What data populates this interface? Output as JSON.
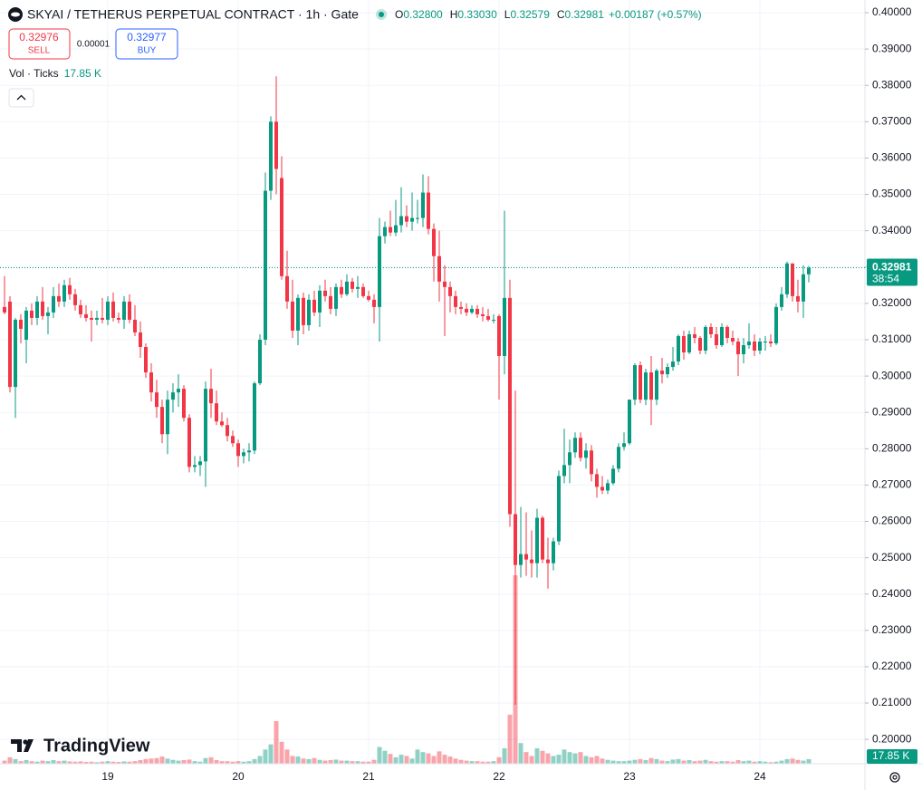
{
  "header": {
    "symbol": "SKYAI / TETHERUS PERPETUAL CONTRACT · 1h · Gate",
    "ohlc": [
      {
        "key": "O",
        "value": "0.32800"
      },
      {
        "key": "H",
        "value": "0.33030"
      },
      {
        "key": "L",
        "value": "0.32579"
      },
      {
        "key": "C",
        "value": "0.32981"
      }
    ],
    "change": "+0.00187 (+0.57%)"
  },
  "trade": {
    "sell_price": "0.32976",
    "sell_label": "SELL",
    "spread": "0.00001",
    "buy_price": "0.32977",
    "buy_label": "BUY"
  },
  "volume_legend": {
    "label": "Vol · Ticks"
  },
  "countdown": "38:54",
  "branding": "TradingView",
  "chart_data": {
    "type": "candlestick",
    "categories": [
      null,
      null,
      null,
      null,
      null,
      null,
      null,
      null,
      null,
      null,
      null,
      null,
      null,
      null,
      null,
      null,
      null,
      null,
      null,
      "19",
      null,
      null,
      null,
      null,
      null,
      null,
      null,
      null,
      null,
      null,
      null,
      null,
      null,
      null,
      null,
      null,
      null,
      null,
      null,
      null,
      null,
      null,
      null,
      "20",
      null,
      null,
      null,
      null,
      null,
      null,
      null,
      null,
      null,
      null,
      null,
      null,
      null,
      null,
      null,
      null,
      null,
      null,
      null,
      null,
      null,
      null,
      null,
      "21",
      null,
      null,
      null,
      null,
      null,
      null,
      null,
      null,
      null,
      null,
      null,
      null,
      null,
      null,
      null,
      null,
      null,
      null,
      null,
      null,
      null,
      null,
      null,
      "22",
      null,
      null,
      null,
      null,
      null,
      null,
      null,
      null,
      null,
      null,
      null,
      null,
      null,
      null,
      null,
      null,
      null,
      null,
      null,
      null,
      null,
      null,
      null,
      "23",
      null,
      null,
      null,
      null,
      null,
      null,
      null,
      null,
      null,
      null,
      null,
      null,
      null,
      null,
      null,
      null,
      null,
      null,
      null,
      null,
      null,
      null,
      null,
      "24",
      null,
      null,
      null,
      null,
      null,
      null,
      null,
      null,
      null
    ],
    "open": [
      0.319,
      0.3205,
      0.297,
      0.3155,
      0.31,
      0.318,
      0.316,
      0.3205,
      0.3165,
      0.3175,
      0.322,
      0.3205,
      0.325,
      0.3225,
      0.3195,
      0.317,
      0.316,
      0.3155,
      0.316,
      0.3155,
      0.3205,
      0.316,
      0.3155,
      0.3205,
      0.3155,
      0.312,
      0.308,
      0.301,
      0.2955,
      0.2915,
      0.284,
      0.2935,
      0.2955,
      0.2965,
      0.2885,
      0.275,
      0.2755,
      0.2765,
      0.2965,
      0.2925,
      0.2875,
      0.2865,
      0.2835,
      0.2815,
      0.278,
      0.279,
      0.2795,
      0.298,
      0.31,
      0.351,
      0.37,
      0.3545,
      0.3275,
      0.3205,
      0.3125,
      0.3215,
      0.314,
      0.321,
      0.3175,
      0.3235,
      0.322,
      0.3185,
      0.3245,
      0.3225,
      0.326,
      0.324,
      0.3245,
      0.322,
      0.321,
      0.319,
      0.3385,
      0.341,
      0.3395,
      0.3415,
      0.344,
      0.3425,
      0.3435,
      0.3435,
      0.3505,
      0.3405,
      0.333,
      0.326,
      0.3245,
      0.322,
      0.319,
      0.3185,
      0.3175,
      0.3185,
      0.317,
      0.3165,
      0.3155,
      0.3165,
      0.3055,
      0.3215,
      0.262,
      0.248,
      0.251,
      0.2495,
      0.2485,
      0.261,
      0.2495,
      0.2485,
      0.2545,
      0.2725,
      0.2755,
      0.279,
      0.283,
      0.2775,
      0.2795,
      0.273,
      0.2695,
      0.2685,
      0.2705,
      0.2745,
      0.2805,
      0.2815,
      0.2935,
      0.303,
      0.2935,
      0.301,
      0.2935,
      0.3015,
      0.3005,
      0.3025,
      0.304,
      0.311,
      0.3065,
      0.3115,
      0.3105,
      0.307,
      0.3135,
      0.3115,
      0.3085,
      0.3135,
      0.3105,
      0.3095,
      0.306,
      0.3085,
      0.3095,
      0.307,
      0.3095,
      0.3095,
      0.309,
      0.319,
      0.3225,
      0.331,
      0.322,
      0.3205,
      0.328
    ],
    "high": [
      0.3275,
      0.322,
      0.316,
      0.317,
      0.319,
      0.32,
      0.322,
      0.3245,
      0.319,
      0.3245,
      0.3255,
      0.3265,
      0.327,
      0.324,
      0.321,
      0.3195,
      0.318,
      0.318,
      0.3215,
      0.322,
      0.323,
      0.3175,
      0.322,
      0.3225,
      0.3195,
      0.315,
      0.309,
      0.3035,
      0.299,
      0.2935,
      0.296,
      0.298,
      0.3005,
      0.2975,
      0.2895,
      0.278,
      0.278,
      0.2985,
      0.302,
      0.296,
      0.29,
      0.2885,
      0.285,
      0.2825,
      0.28,
      0.2815,
      0.2985,
      0.3115,
      0.356,
      0.3715,
      0.3825,
      0.3605,
      0.3345,
      0.3265,
      0.3225,
      0.323,
      0.3225,
      0.3235,
      0.325,
      0.3265,
      0.3245,
      0.3255,
      0.3265,
      0.328,
      0.327,
      0.3275,
      0.3255,
      0.3235,
      0.3225,
      0.3435,
      0.3425,
      0.3455,
      0.3485,
      0.352,
      0.347,
      0.3505,
      0.3485,
      0.3555,
      0.355,
      0.342,
      0.34,
      0.3305,
      0.326,
      0.3235,
      0.3205,
      0.32,
      0.3195,
      0.3195,
      0.319,
      0.3185,
      0.317,
      0.317,
      0.3455,
      0.3265,
      0.296,
      0.264,
      0.2625,
      0.2575,
      0.2635,
      0.2615,
      0.2555,
      0.2555,
      0.274,
      0.2855,
      0.2825,
      0.2845,
      0.2845,
      0.2815,
      0.281,
      0.2745,
      0.2725,
      0.2715,
      0.2755,
      0.2815,
      0.2845,
      0.2935,
      0.3035,
      0.304,
      0.302,
      0.3055,
      0.302,
      0.305,
      0.3035,
      0.308,
      0.3115,
      0.3125,
      0.3125,
      0.3135,
      0.311,
      0.314,
      0.3145,
      0.3135,
      0.3145,
      0.314,
      0.3125,
      0.3105,
      0.3105,
      0.3145,
      0.3115,
      0.3105,
      0.311,
      0.3115,
      0.32,
      0.3245,
      0.3315,
      0.331,
      0.3265,
      0.3305,
      0.3303
    ],
    "low": [
      0.317,
      0.2955,
      0.2885,
      0.309,
      0.3035,
      0.314,
      0.314,
      0.3155,
      0.3115,
      0.316,
      0.319,
      0.319,
      0.321,
      0.318,
      0.316,
      0.315,
      0.3095,
      0.314,
      0.3145,
      0.314,
      0.315,
      0.3145,
      0.313,
      0.3145,
      0.311,
      0.305,
      0.2995,
      0.293,
      0.2885,
      0.2815,
      0.2785,
      0.29,
      0.2915,
      0.2875,
      0.2735,
      0.2735,
      0.2725,
      0.2695,
      0.2885,
      0.2865,
      0.286,
      0.282,
      0.2805,
      0.275,
      0.276,
      0.2765,
      0.2785,
      0.2975,
      0.3085,
      0.3485,
      0.35,
      0.3265,
      0.3185,
      0.3105,
      0.3085,
      0.3115,
      0.3125,
      0.3165,
      0.3135,
      0.3205,
      0.317,
      0.3165,
      0.3215,
      0.322,
      0.323,
      0.3215,
      0.3215,
      0.3205,
      0.3145,
      0.3095,
      0.3365,
      0.3385,
      0.3385,
      0.3395,
      0.341,
      0.34,
      0.342,
      0.341,
      0.339,
      0.326,
      0.3205,
      0.311,
      0.3175,
      0.317,
      0.317,
      0.3165,
      0.317,
      0.316,
      0.315,
      0.315,
      0.3145,
      0.2935,
      0.3005,
      0.2585,
      0.2095,
      0.2445,
      0.245,
      0.2445,
      0.2445,
      0.2485,
      0.2415,
      0.2465,
      0.2535,
      0.2705,
      0.2705,
      0.2775,
      0.2765,
      0.2745,
      0.271,
      0.2665,
      0.2675,
      0.2675,
      0.27,
      0.2735,
      0.2795,
      0.281,
      0.292,
      0.2925,
      0.292,
      0.2865,
      0.292,
      0.298,
      0.2995,
      0.3015,
      0.303,
      0.3045,
      0.306,
      0.309,
      0.306,
      0.306,
      0.3105,
      0.3075,
      0.308,
      0.309,
      0.3085,
      0.3,
      0.3035,
      0.3075,
      0.3055,
      0.306,
      0.307,
      0.308,
      0.3085,
      0.318,
      0.3215,
      0.3205,
      0.3175,
      0.316,
      0.32579
    ],
    "close": [
      0.3175,
      0.297,
      0.3155,
      0.313,
      0.318,
      0.316,
      0.3205,
      0.3165,
      0.3175,
      0.322,
      0.3205,
      0.325,
      0.3225,
      0.3195,
      0.317,
      0.316,
      0.3155,
      0.316,
      0.3155,
      0.3205,
      0.316,
      0.3155,
      0.3205,
      0.3155,
      0.312,
      0.308,
      0.301,
      0.2955,
      0.2915,
      0.284,
      0.2935,
      0.2955,
      0.2965,
      0.2885,
      0.275,
      0.2755,
      0.2765,
      0.2965,
      0.2925,
      0.2875,
      0.2865,
      0.2835,
      0.2815,
      0.278,
      0.279,
      0.2795,
      0.298,
      0.31,
      0.351,
      0.37,
      0.357,
      0.3275,
      0.3205,
      0.3125,
      0.3215,
      0.314,
      0.321,
      0.3175,
      0.3235,
      0.322,
      0.3185,
      0.3245,
      0.3225,
      0.326,
      0.324,
      0.3245,
      0.322,
      0.321,
      0.319,
      0.3385,
      0.341,
      0.3395,
      0.3415,
      0.344,
      0.3425,
      0.3435,
      0.3435,
      0.3505,
      0.3405,
      0.333,
      0.326,
      0.3245,
      0.322,
      0.319,
      0.3185,
      0.3175,
      0.3185,
      0.317,
      0.3165,
      0.3155,
      0.3155,
      0.3055,
      0.3215,
      0.262,
      0.248,
      0.251,
      0.2495,
      0.2485,
      0.261,
      0.2495,
      0.2485,
      0.2545,
      0.2725,
      0.2755,
      0.279,
      0.283,
      0.2775,
      0.2795,
      0.273,
      0.2695,
      0.2685,
      0.2705,
      0.2745,
      0.2805,
      0.2815,
      0.2935,
      0.303,
      0.2935,
      0.301,
      0.2935,
      0.3015,
      0.3005,
      0.3025,
      0.304,
      0.311,
      0.3065,
      0.3115,
      0.3105,
      0.307,
      0.3135,
      0.3115,
      0.3085,
      0.3135,
      0.3105,
      0.3095,
      0.306,
      0.3085,
      0.3095,
      0.307,
      0.3095,
      0.3095,
      0.309,
      0.319,
      0.3225,
      0.331,
      0.322,
      0.3205,
      0.328,
      0.32981
    ],
    "volume": {
      "values": [
        12,
        25,
        18,
        10,
        14,
        10,
        8,
        12,
        10,
        14,
        10,
        12,
        9,
        8,
        9,
        7,
        8,
        6,
        8,
        10,
        8,
        7,
        9,
        8,
        10,
        14,
        18,
        20,
        22,
        28,
        20,
        15,
        12,
        14,
        16,
        10,
        8,
        22,
        25,
        14,
        10,
        10,
        8,
        10,
        8,
        10,
        18,
        30,
        55,
        75,
        165,
        85,
        55,
        30,
        28,
        20,
        18,
        22,
        15,
        12,
        14,
        16,
        12,
        12,
        10,
        10,
        8,
        8,
        15,
        65,
        50,
        38,
        25,
        35,
        30,
        20,
        55,
        45,
        40,
        30,
        48,
        35,
        28,
        20,
        15,
        12,
        10,
        10,
        8,
        8,
        10,
        25,
        60,
        190,
        730,
        80,
        45,
        30,
        60,
        50,
        40,
        30,
        35,
        55,
        45,
        40,
        45,
        30,
        25,
        30,
        20,
        15,
        12,
        10,
        10,
        12,
        15,
        18,
        14,
        22,
        18,
        12,
        10,
        16,
        18,
        12,
        14,
        10,
        12,
        15,
        10,
        8,
        10,
        10,
        8,
        14,
        10,
        12,
        8,
        10,
        8,
        6,
        8,
        12,
        18,
        20,
        15,
        12,
        17.85
      ],
      "last_label": "17.85 K"
    },
    "up_color": "#089981",
    "down_color": "#f23645",
    "ylim": [
      0.1933,
      0.4035
    ],
    "yticks": [
      {
        "value": 0.2,
        "label": "0.20000"
      },
      {
        "value": 0.21,
        "label": "0.21000"
      },
      {
        "value": 0.22,
        "label": "0.22000"
      },
      {
        "value": 0.23,
        "label": "0.23000"
      },
      {
        "value": 0.24,
        "label": "0.24000"
      },
      {
        "value": 0.25,
        "label": "0.25000"
      },
      {
        "value": 0.26,
        "label": "0.26000"
      },
      {
        "value": 0.27,
        "label": "0.27000"
      },
      {
        "value": 0.28,
        "label": "0.28000"
      },
      {
        "value": 0.29,
        "label": "0.29000"
      },
      {
        "value": 0.3,
        "label": "0.30000"
      },
      {
        "value": 0.31,
        "label": "0.31000"
      },
      {
        "value": 0.32,
        "label": "0.32000"
      },
      {
        "value": 0.33,
        "label": "0.33000"
      },
      {
        "value": 0.34,
        "label": "0.34000"
      },
      {
        "value": 0.35,
        "label": "0.35000"
      },
      {
        "value": 0.36,
        "label": "0.36000"
      },
      {
        "value": 0.37,
        "label": "0.37000"
      },
      {
        "value": 0.38,
        "label": "0.38000"
      },
      {
        "value": 0.39,
        "label": "0.39000"
      },
      {
        "value": 0.4,
        "label": "0.40000"
      }
    ],
    "grid": true
  }
}
